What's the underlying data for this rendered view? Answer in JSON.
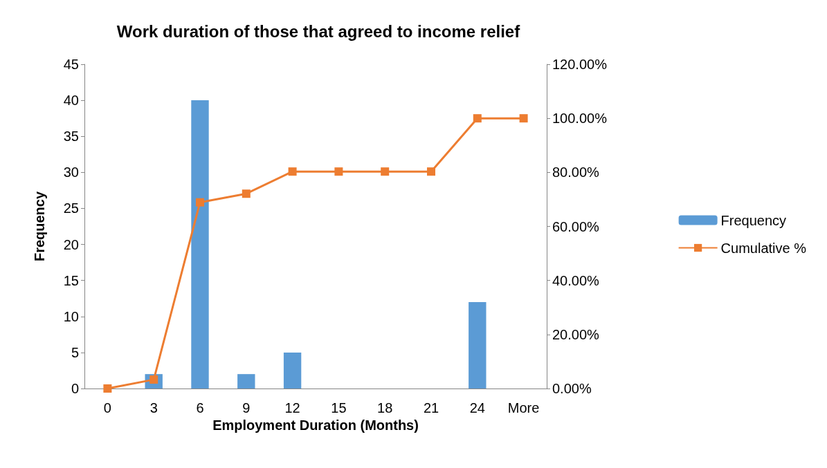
{
  "chart_data": {
    "type": "bar",
    "title": "Work duration of those that agreed to income relief",
    "xlabel": "Employment Duration (Months)",
    "ylabel": "Frequency",
    "categories": [
      "0",
      "3",
      "6",
      "9",
      "12",
      "15",
      "18",
      "21",
      "24",
      "More"
    ],
    "series": [
      {
        "name": "Frequency",
        "color": "#5b9bd5",
        "values": [
          0,
          2,
          40,
          2,
          5,
          0,
          0,
          0,
          12,
          0
        ]
      },
      {
        "name": "Cumulative %",
        "color": "#ed7d31",
        "type": "line",
        "axis": "y2",
        "marker": "square",
        "values": [
          0,
          3.3,
          68.9,
          72.1,
          80.3,
          80.3,
          80.3,
          80.3,
          100,
          100
        ]
      }
    ],
    "ylim": [
      0,
      45
    ],
    "yticks": [
      0,
      5,
      10,
      15,
      20,
      25,
      30,
      35,
      40,
      45
    ],
    "y2lim": [
      0,
      120
    ],
    "y2ticks": [
      {
        "value": 0,
        "label": "0.00%"
      },
      {
        "value": 20,
        "label": "20.00%"
      },
      {
        "value": 40,
        "label": "40.00%"
      },
      {
        "value": 60,
        "label": "60.00%"
      },
      {
        "value": 80,
        "label": "80.00%"
      },
      {
        "value": 100,
        "label": "100.00%"
      },
      {
        "value": 120,
        "label": "120.00%"
      }
    ],
    "grid": false,
    "legend": "right"
  }
}
